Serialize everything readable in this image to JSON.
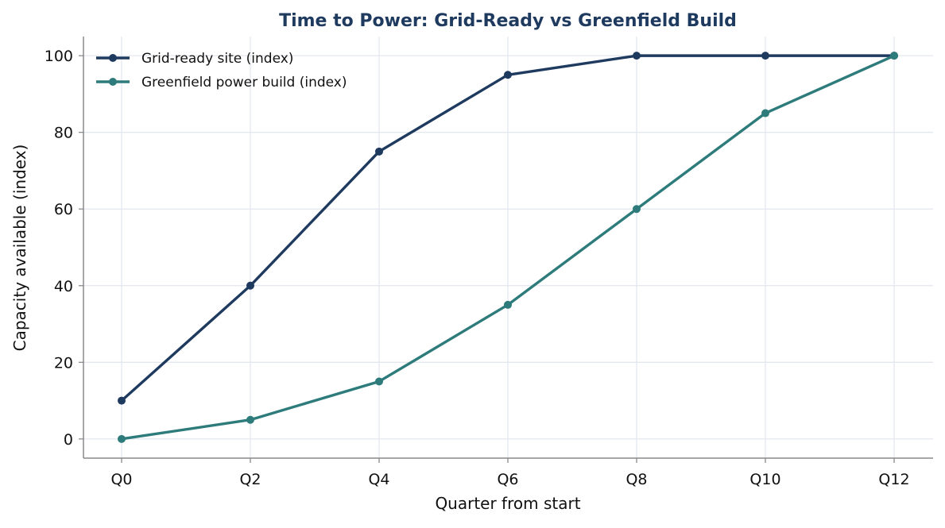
{
  "chart_data": {
    "type": "line",
    "title": "Time to Power: Grid-Ready vs Greenfield Build",
    "xlabel": "Quarter from start",
    "ylabel": "Capacity available (index)",
    "x": [
      "Q0",
      "Q2",
      "Q4",
      "Q6",
      "Q8",
      "Q10",
      "Q12"
    ],
    "yticks": [
      0,
      20,
      40,
      60,
      80,
      100
    ],
    "ylim": [
      -5,
      105
    ],
    "grid": true,
    "legend_position": "top-left",
    "title_color": "#1f3a5f",
    "series": [
      {
        "name": "Grid-ready site (index)",
        "color": "#1f3a5f",
        "values": [
          10,
          40,
          75,
          95,
          100,
          100,
          100
        ]
      },
      {
        "name": "Greenfield power build (index)",
        "color": "#2e7b7b",
        "values": [
          0,
          5,
          15,
          35,
          60,
          85,
          100
        ]
      }
    ]
  }
}
